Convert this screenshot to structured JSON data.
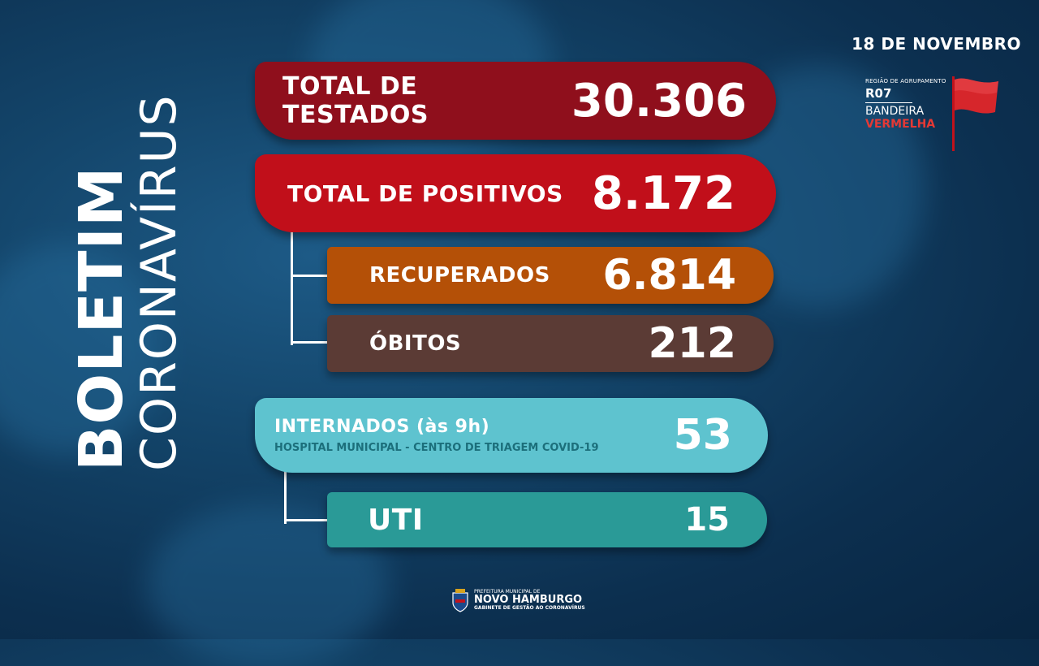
{
  "side_title": {
    "bold": "BOLETIM",
    "light": "CORONAVÍRUS"
  },
  "date": "18 DE NOVEMBRO",
  "region": {
    "caption": "REGIÃO DE AGRUPAMENTO",
    "code": "R07",
    "line1": "BANDEIRA",
    "line2": "VERMELHA",
    "flag_color": "#d6262b"
  },
  "stats": {
    "testados": {
      "label": "TOTAL DE TESTADOS",
      "value": "30.306"
    },
    "positivos": {
      "label": "TOTAL DE POSITIVOS",
      "value": "8.172"
    },
    "recuperados": {
      "label": "RECUPERADOS",
      "value": "6.814"
    },
    "obitos": {
      "label": "ÓBITOS",
      "value": "212"
    },
    "internados": {
      "label": "INTERNADOS (às 9h)",
      "sublabel": "HOSPITAL MUNICIPAL - CENTRO DE TRIAGEM COVID-19",
      "value": "53"
    },
    "uti": {
      "label": "UTI",
      "value": "15"
    }
  },
  "logo": {
    "line1": "PREFEITURA MUNICIPAL DE",
    "line2": "NOVO HAMBURGO",
    "line3": "GABINETE DE GESTÃO AO CORONAVÍRUS"
  }
}
